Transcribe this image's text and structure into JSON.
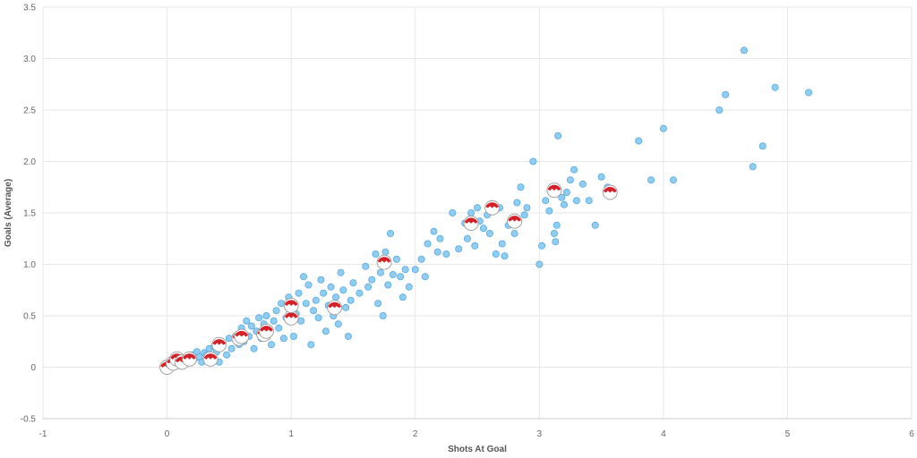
{
  "chart_data": {
    "type": "scatter",
    "title": "",
    "xlabel": "Shots At Goal",
    "ylabel": "Goals (Average)",
    "xlim": [
      -1,
      6
    ],
    "ylim": [
      -0.5,
      3.5
    ],
    "xticks": [
      "-1",
      "0",
      "1",
      "2",
      "3",
      "4",
      "5",
      "6"
    ],
    "yticks": [
      "-0.5",
      "0",
      "0.5",
      "1.0",
      "1.5",
      "2.0",
      "2.5",
      "3.0",
      "3.5"
    ],
    "grid": true,
    "colors": {
      "main": "#8ecdf4",
      "main_stroke": "#5aa9dd",
      "highlight": "#d62027",
      "highlight_bg": "#ffffff"
    },
    "series": [
      {
        "points": [
          [
            0.02,
            0.01
          ],
          [
            0.05,
            0.03
          ],
          [
            0.08,
            0.02
          ],
          [
            0.1,
            0.05
          ],
          [
            0.12,
            0.08
          ],
          [
            0.14,
            0.04
          ],
          [
            0.16,
            0.1
          ],
          [
            0.18,
            0.06
          ],
          [
            0.2,
            0.12
          ],
          [
            0.22,
            0.08
          ],
          [
            0.24,
            0.15
          ],
          [
            0.26,
            0.1
          ],
          [
            0.28,
            0.05
          ],
          [
            0.3,
            0.14
          ],
          [
            0.32,
            0.12
          ],
          [
            0.34,
            0.18
          ],
          [
            0.36,
            0.08
          ],
          [
            0.38,
            0.2
          ],
          [
            0.4,
            0.15
          ],
          [
            0.42,
            0.05
          ],
          [
            0.45,
            0.22
          ],
          [
            0.48,
            0.12
          ],
          [
            0.5,
            0.28
          ],
          [
            0.52,
            0.18
          ],
          [
            0.55,
            0.3
          ],
          [
            0.58,
            0.22
          ],
          [
            0.6,
            0.38
          ],
          [
            0.62,
            0.25
          ],
          [
            0.64,
            0.45
          ],
          [
            0.66,
            0.3
          ],
          [
            0.68,
            0.4
          ],
          [
            0.7,
            0.18
          ],
          [
            0.72,
            0.35
          ],
          [
            0.74,
            0.48
          ],
          [
            0.76,
            0.28
          ],
          [
            0.78,
            0.42
          ],
          [
            0.8,
            0.5
          ],
          [
            0.82,
            0.32
          ],
          [
            0.84,
            0.22
          ],
          [
            0.86,
            0.45
          ],
          [
            0.88,
            0.55
          ],
          [
            0.9,
            0.38
          ],
          [
            0.92,
            0.62
          ],
          [
            0.94,
            0.28
          ],
          [
            0.96,
            0.48
          ],
          [
            0.98,
            0.68
          ],
          [
            1.0,
            0.58
          ],
          [
            1.02,
            0.3
          ],
          [
            1.04,
            0.52
          ],
          [
            1.06,
            0.72
          ],
          [
            1.08,
            0.45
          ],
          [
            1.1,
            0.88
          ],
          [
            1.12,
            0.62
          ],
          [
            1.14,
            0.8
          ],
          [
            1.16,
            0.22
          ],
          [
            1.18,
            0.55
          ],
          [
            1.2,
            0.65
          ],
          [
            1.22,
            0.48
          ],
          [
            1.24,
            0.85
          ],
          [
            1.26,
            0.72
          ],
          [
            1.28,
            0.35
          ],
          [
            1.3,
            0.6
          ],
          [
            1.32,
            0.78
          ],
          [
            1.34,
            0.5
          ],
          [
            1.36,
            0.68
          ],
          [
            1.38,
            0.42
          ],
          [
            1.4,
            0.92
          ],
          [
            1.42,
            0.75
          ],
          [
            1.44,
            0.58
          ],
          [
            1.46,
            0.3
          ],
          [
            1.48,
            0.65
          ],
          [
            1.5,
            0.82
          ],
          [
            1.55,
            0.72
          ],
          [
            1.6,
            0.98
          ],
          [
            1.62,
            0.78
          ],
          [
            1.65,
            0.85
          ],
          [
            1.68,
            1.1
          ],
          [
            1.7,
            0.62
          ],
          [
            1.72,
            0.92
          ],
          [
            1.74,
            0.5
          ],
          [
            1.76,
            1.12
          ],
          [
            1.78,
            0.8
          ],
          [
            1.8,
            1.3
          ],
          [
            1.82,
            0.9
          ],
          [
            1.85,
            1.05
          ],
          [
            1.88,
            0.88
          ],
          [
            1.9,
            0.68
          ],
          [
            1.92,
            0.95
          ],
          [
            1.95,
            0.78
          ],
          [
            2.0,
            0.95
          ],
          [
            2.05,
            1.05
          ],
          [
            2.08,
            0.88
          ],
          [
            2.1,
            1.2
          ],
          [
            2.15,
            1.32
          ],
          [
            2.18,
            1.12
          ],
          [
            2.2,
            1.25
          ],
          [
            2.25,
            1.1
          ],
          [
            2.3,
            1.5
          ],
          [
            2.35,
            1.15
          ],
          [
            2.4,
            1.4
          ],
          [
            2.42,
            1.25
          ],
          [
            2.45,
            1.5
          ],
          [
            2.48,
            1.18
          ],
          [
            2.5,
            1.55
          ],
          [
            2.52,
            1.42
          ],
          [
            2.55,
            1.35
          ],
          [
            2.58,
            1.48
          ],
          [
            2.6,
            1.3
          ],
          [
            2.62,
            1.52
          ],
          [
            2.65,
            1.1
          ],
          [
            2.68,
            1.55
          ],
          [
            2.7,
            1.2
          ],
          [
            2.72,
            1.08
          ],
          [
            2.75,
            1.38
          ],
          [
            2.8,
            1.3
          ],
          [
            2.82,
            1.6
          ],
          [
            2.85,
            1.75
          ],
          [
            2.88,
            1.48
          ],
          [
            2.9,
            1.55
          ],
          [
            2.95,
            2.0
          ],
          [
            3.0,
            1.0
          ],
          [
            3.02,
            1.18
          ],
          [
            3.05,
            1.62
          ],
          [
            3.08,
            1.52
          ],
          [
            3.12,
            1.3
          ],
          [
            3.13,
            1.22
          ],
          [
            3.14,
            1.38
          ],
          [
            3.15,
            2.25
          ],
          [
            3.18,
            1.65
          ],
          [
            3.2,
            1.58
          ],
          [
            3.22,
            1.7
          ],
          [
            3.25,
            1.82
          ],
          [
            3.28,
            1.92
          ],
          [
            3.3,
            1.62
          ],
          [
            3.35,
            1.78
          ],
          [
            3.4,
            1.62
          ],
          [
            3.45,
            1.38
          ],
          [
            3.5,
            1.85
          ],
          [
            3.55,
            1.75
          ],
          [
            3.8,
            2.2
          ],
          [
            3.9,
            1.82
          ],
          [
            4.0,
            2.32
          ],
          [
            4.08,
            1.82
          ],
          [
            4.45,
            2.5
          ],
          [
            4.5,
            2.65
          ],
          [
            4.65,
            3.08
          ],
          [
            4.72,
            1.95
          ],
          [
            4.8,
            2.15
          ],
          [
            4.9,
            2.72
          ],
          [
            5.17,
            2.67
          ]
        ]
      },
      {
        "points": [
          [
            0.0,
            0.0
          ],
          [
            0.05,
            0.04
          ],
          [
            0.08,
            0.08
          ],
          [
            0.12,
            0.05
          ],
          [
            0.18,
            0.08
          ],
          [
            0.35,
            0.08
          ],
          [
            0.42,
            0.22
          ],
          [
            0.58,
            0.28
          ],
          [
            0.6,
            0.3
          ],
          [
            0.78,
            0.32
          ],
          [
            0.8,
            0.35
          ],
          [
            1.0,
            0.48
          ],
          [
            1.0,
            0.6
          ],
          [
            1.35,
            0.58
          ],
          [
            1.75,
            1.02
          ],
          [
            2.45,
            1.4
          ],
          [
            2.62,
            1.55
          ],
          [
            2.8,
            1.42
          ],
          [
            3.12,
            1.72
          ],
          [
            3.57,
            1.7
          ]
        ]
      }
    ]
  }
}
